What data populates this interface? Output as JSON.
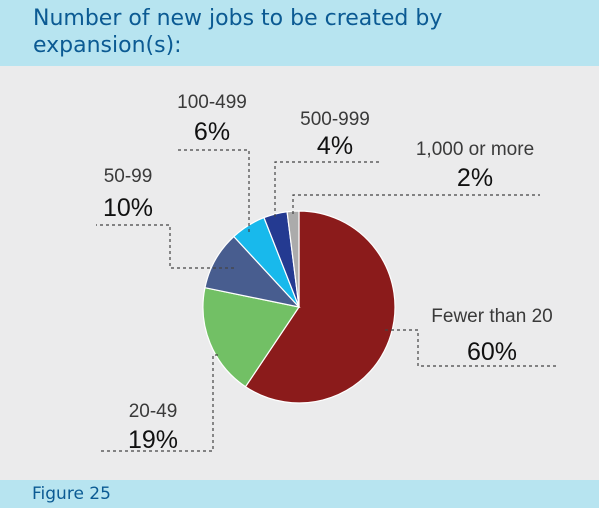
{
  "title": "Number of new jobs to be created by expansion(s):",
  "figure_label": "Figure 25",
  "chart_data": {
    "type": "pie",
    "slices": [
      {
        "label": "Fewer than 20",
        "value": 60,
        "value_label": "60%",
        "color": "#8b1b1b"
      },
      {
        "label": "20-49",
        "value": 19,
        "value_label": "19%",
        "color": "#72c065"
      },
      {
        "label": "50-99",
        "value": 10,
        "value_label": "10%",
        "color": "#485d8f"
      },
      {
        "label": "100-499",
        "value": 6,
        "value_label": "6%",
        "color": "#18b9ec"
      },
      {
        "label": "500-999",
        "value": 4,
        "value_label": "4%",
        "color": "#243a91"
      },
      {
        "label": "1,000 or more",
        "value": 2,
        "value_label": "2%",
        "color": "#ababab"
      }
    ]
  }
}
